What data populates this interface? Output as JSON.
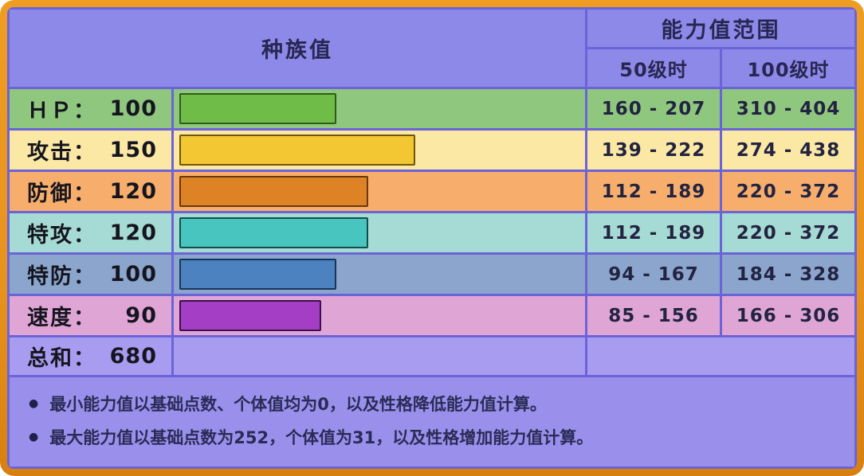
{
  "header": {
    "base_stats_title": "种族值",
    "range_title": "能力值范围",
    "level50_label": "50级时",
    "level100_label": "100级时"
  },
  "colors": {
    "frame_orange": "#E8921E",
    "grid_line": "#6B63D8",
    "header_bg": "#8D89E8",
    "total_row_bg": "#A89CF0",
    "notes_bg": "#9A90EC"
  },
  "stats": {
    "max_base_stat": 255,
    "rows": [
      {
        "label": "ＨＰ：",
        "value": "100",
        "range50": "160 - 207",
        "range100": "310 - 404",
        "row_bg": "#8FC77E",
        "bar_color": "#6FBC49",
        "bar_border": "#2F5D18"
      },
      {
        "label": "攻击：",
        "value": "150",
        "range50": "139 - 222",
        "range100": "274 - 438",
        "row_bg": "#FBE8A4",
        "bar_color": "#F3C634",
        "bar_border": "#6E570C"
      },
      {
        "label": "防御：",
        "value": "120",
        "range50": "112 - 189",
        "range100": "220 - 372",
        "row_bg": "#F7AE6C",
        "bar_color": "#DE8226",
        "bar_border": "#68380A"
      },
      {
        "label": "特攻：",
        "value": "120",
        "range50": "112 - 189",
        "range100": "220 - 372",
        "row_bg": "#A6DBD5",
        "bar_color": "#48C5BF",
        "bar_border": "#124F4C"
      },
      {
        "label": "特防：",
        "value": "100",
        "range50": "94 - 167",
        "range100": "184 - 328",
        "row_bg": "#8BA5CD",
        "bar_color": "#4B82BF",
        "bar_border": "#17355C"
      },
      {
        "label": "速度：",
        "value": "90",
        "range50": "85 - 156",
        "range100": "166 - 306",
        "row_bg": "#DFA6D5",
        "bar_color": "#A43EC5",
        "bar_border": "#3C0F4E"
      }
    ],
    "total": {
      "label": "总和：",
      "value": "680"
    }
  },
  "notes": [
    "最小能力值以基础点数、个体值均为0，以及性格降低能力值计算。",
    "最大能力值以基础点数为252，个体值为31，以及性格增加能力值计算。"
  ],
  "chart_data": {
    "type": "bar",
    "orientation": "horizontal",
    "title": "种族值",
    "categories": [
      "ＨＰ",
      "攻击",
      "防御",
      "特攻",
      "特防",
      "速度"
    ],
    "values": [
      100,
      150,
      120,
      120,
      100,
      90
    ],
    "total": 680,
    "xlim": [
      0,
      255
    ],
    "bar_colors": [
      "#6FBC49",
      "#F3C634",
      "#DE8226",
      "#48C5BF",
      "#4B82BF",
      "#A43EC5"
    ],
    "range_table": {
      "title": "能力值范围",
      "columns": [
        "50级时",
        "100级时"
      ],
      "level50": [
        "160 - 207",
        "139 - 222",
        "112 - 189",
        "112 - 189",
        "94 - 167",
        "85 - 156"
      ],
      "level100": [
        "310 - 404",
        "274 - 438",
        "220 - 372",
        "220 - 372",
        "184 - 328",
        "166 - 306"
      ]
    }
  }
}
